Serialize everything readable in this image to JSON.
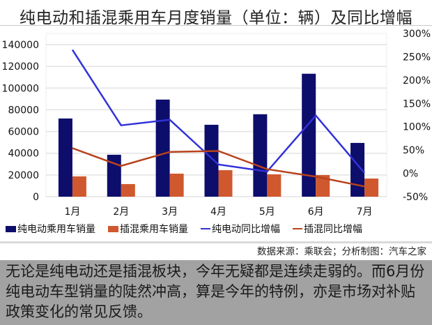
{
  "title": "纯电动和插混乘用车月度销量（单位：辆）及同比增幅",
  "chart_data": {
    "type": "bar",
    "title": "纯电动和插混乘用车月度销量（单位：辆）及同比增幅",
    "categories": [
      "1月",
      "2月",
      "3月",
      "4月",
      "5月",
      "6月",
      "7月"
    ],
    "series": [
      {
        "name": "纯电动乘用车销量",
        "type": "bar",
        "axis": "left",
        "color": "#0d0d6b",
        "values": [
          72000,
          38600,
          89400,
          66200,
          75900,
          113200,
          49500
        ]
      },
      {
        "name": "插混乘用车销量",
        "type": "bar",
        "axis": "left",
        "color": "#d0582e",
        "values": [
          18700,
          11600,
          21200,
          24400,
          20600,
          19900,
          16700
        ]
      },
      {
        "name": "纯电动同比增幅",
        "type": "line",
        "axis": "right",
        "unit": "%",
        "color": "#3232d8",
        "values": [
          265,
          103,
          115,
          19,
          4,
          124,
          1
        ]
      },
      {
        "name": "插混同比增幅",
        "type": "line",
        "axis": "right",
        "unit": "%",
        "color": "#b8431c",
        "values": [
          54,
          16,
          46,
          48,
          9,
          -7,
          -28
        ]
      }
    ],
    "left_axis": {
      "ylim": [
        0,
        140000
      ],
      "ticks": [
        "0",
        "20000",
        "40000",
        "60000",
        "80000",
        "100000",
        "120000",
        "140000"
      ]
    },
    "right_axis": {
      "ylim": [
        -50,
        300
      ],
      "ticks": [
        "-50%",
        "0%",
        "50%",
        "100%",
        "150%",
        "200%",
        "250%",
        "300%"
      ]
    },
    "xlabel": "",
    "ylabel": "",
    "grid": true,
    "legend_position": "bottom"
  },
  "legend": [
    {
      "label": "纯电动乘用车销量",
      "kind": "bar",
      "color": "#0d0d6b"
    },
    {
      "label": "插混乘用车销量",
      "kind": "bar",
      "color": "#d0582e"
    },
    {
      "label": "纯电动同比增幅",
      "kind": "line",
      "color": "#3232d8"
    },
    {
      "label": "插混同比增幅",
      "kind": "line",
      "color": "#b8431c"
    }
  ],
  "source": "数据来源：乘联会；分析制图：汽车之家",
  "caption": "无论是纯电动还是插混板块，今年无疑都是连续走弱的。而6月份纯电动车型销量的陡然冲高，算是今年的特例，亦是市场对补贴政策变化的常见反馈。"
}
